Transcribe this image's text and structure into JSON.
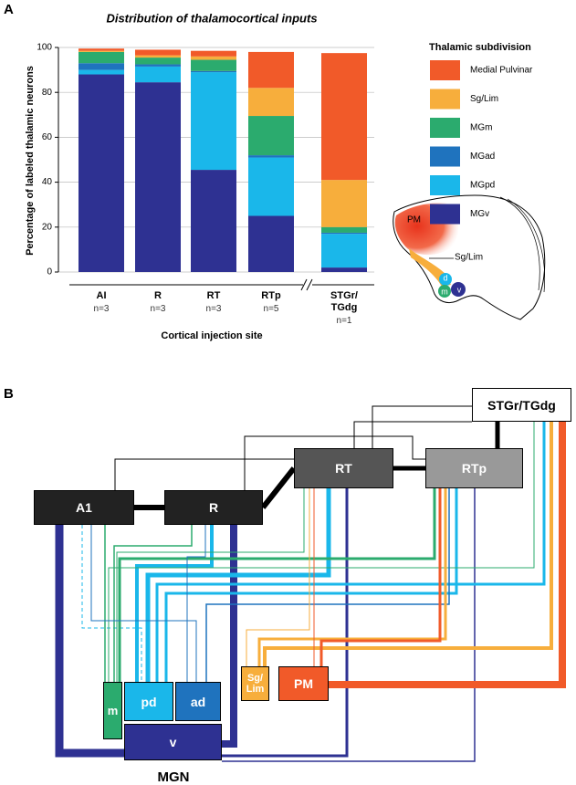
{
  "panel_labels": [
    "A",
    "B"
  ],
  "chart_data": {
    "type": "stacked_bar",
    "title": "Distribution of thalamocortical inputs",
    "y_label": "Percentage of labeled thalamic neurons",
    "x_label": "Cortical injection site",
    "categories": [
      "AI",
      "R",
      "RT",
      "RTp",
      "STGr/\nTGdg"
    ],
    "n_labels": [
      "n=3",
      "n=3",
      "n=3",
      "n=5",
      "n=1"
    ],
    "legend_title": "Thalamic subdivision",
    "series": [
      {
        "name": "MGv",
        "color": "#2e3192",
        "values": [
          88,
          84.5,
          45.5,
          25,
          2
        ]
      },
      {
        "name": "MGpd",
        "color": "#1ab7ea",
        "values": [
          2,
          7,
          43.5,
          26,
          15
        ]
      },
      {
        "name": "MGad",
        "color": "#1f73be",
        "values": [
          3,
          1,
          0.5,
          1,
          0.5
        ]
      },
      {
        "name": "MGm",
        "color": "#2bab6e",
        "values": [
          5,
          3,
          5,
          17.5,
          2.5
        ]
      },
      {
        "name": "Sg/Lim",
        "color": "#f7ae3c",
        "values": [
          0.5,
          1,
          1.5,
          12.5,
          21
        ]
      },
      {
        "name": "Medial Pulvinar",
        "color": "#f15a29",
        "values": [
          1,
          2.5,
          2.5,
          16,
          56.5
        ]
      }
    ],
    "ylim": [
      0,
      100
    ],
    "yticks": [
      0,
      20,
      40,
      60,
      80,
      100
    ],
    "grid": true
  },
  "inset": {
    "labels": [
      "PM",
      "Sg/Lim",
      "d",
      "m",
      "v"
    ]
  },
  "diagram": {
    "boxes": [
      "STGr/TGdg",
      "RT",
      "RTp",
      "A1",
      "R",
      "m",
      "pd",
      "ad",
      "v",
      "Sg/\nLim",
      "PM"
    ],
    "group_label": "MGN"
  }
}
